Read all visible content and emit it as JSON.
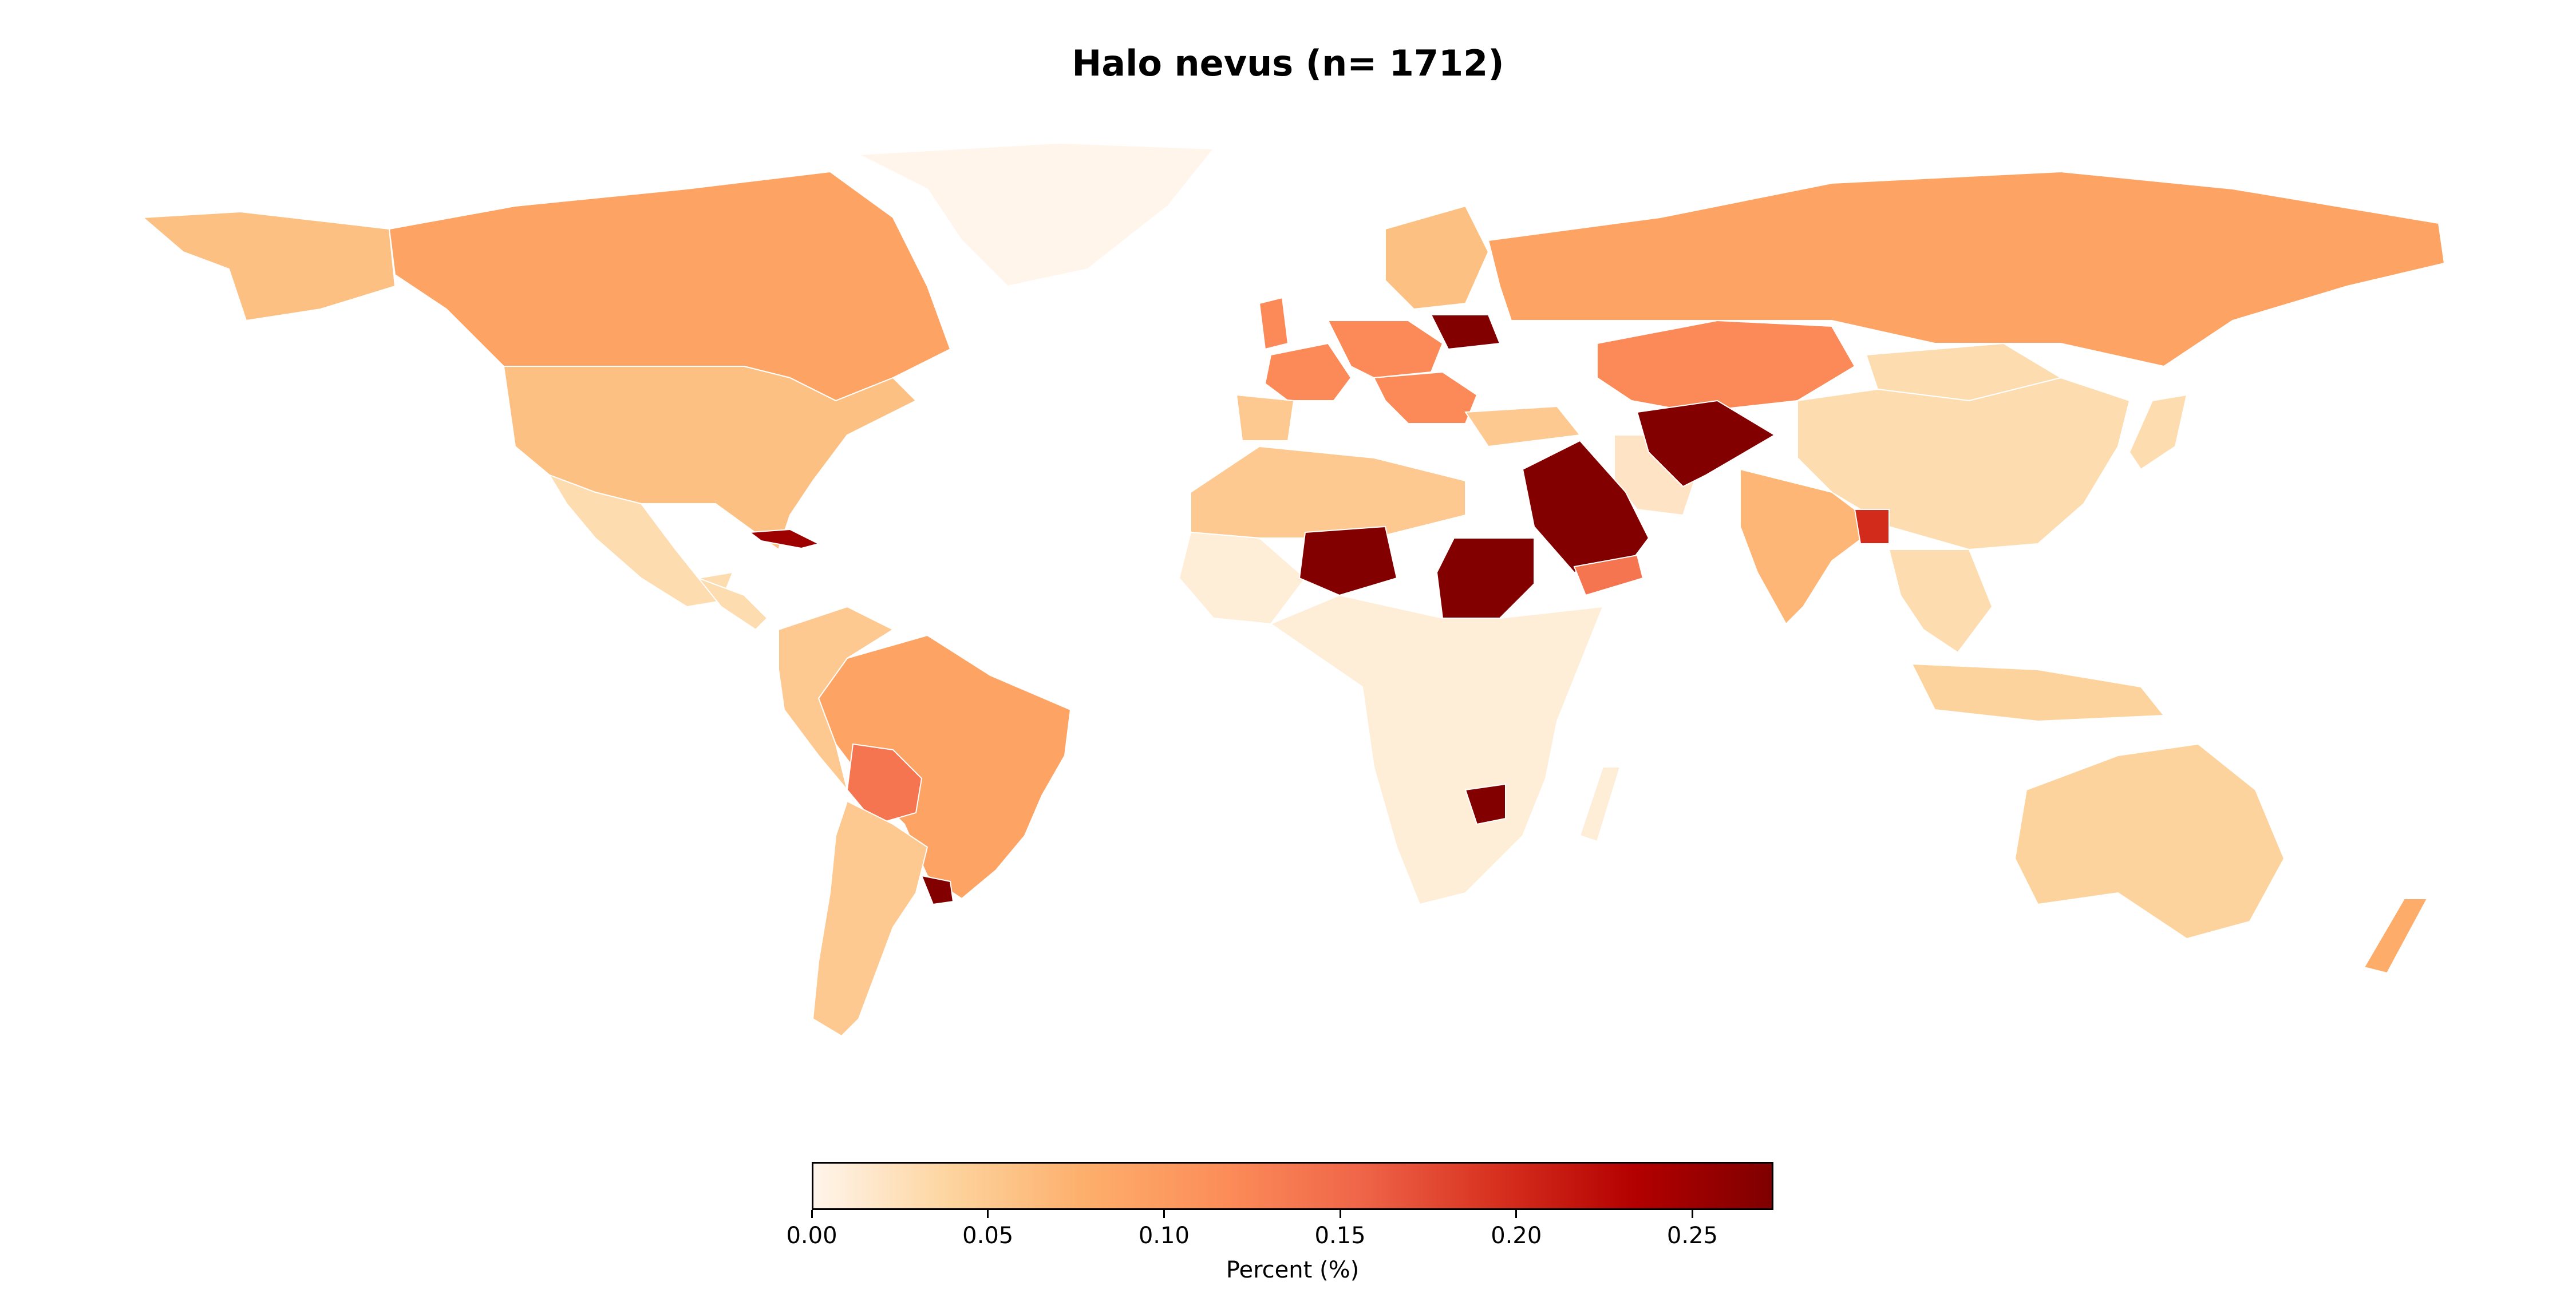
{
  "title": "Halo nevus (n= 1712)",
  "colorbar": {
    "label": "Percent (%)",
    "min": 0,
    "max": 0.273,
    "ticks": [
      "0.00",
      "0.05",
      "0.10",
      "0.15",
      "0.20",
      "0.25"
    ],
    "tick_values": [
      0,
      0.05,
      0.1,
      0.15,
      0.2,
      0.25
    ],
    "colors": [
      "#fff5eb",
      "#fdd49e",
      "#fdae6b",
      "#fc8d59",
      "#ef6548",
      "#d7301f",
      "#b30000",
      "#7f0000"
    ]
  },
  "countries": [
    {
      "name": "Canada",
      "value": 0.09
    },
    {
      "name": "USA",
      "value": 0.06
    },
    {
      "name": "Greenland",
      "value": 0.0
    },
    {
      "name": "Mexico",
      "value": 0.03
    },
    {
      "name": "Cuba",
      "value": 0.25
    },
    {
      "name": "Brazil",
      "value": 0.09
    },
    {
      "name": "Bolivia",
      "value": 0.14
    },
    {
      "name": "Uruguay",
      "value": 0.27
    },
    {
      "name": "Argentina",
      "value": 0.05
    },
    {
      "name": "Russia",
      "value": 0.09
    },
    {
      "name": "Kazakhstan",
      "value": 0.12
    },
    {
      "name": "China",
      "value": 0.03
    },
    {
      "name": "India",
      "value": 0.07
    },
    {
      "name": "Saudi Arabia",
      "value": 0.27
    },
    {
      "name": "Afghanistan",
      "value": 0.27
    },
    {
      "name": "Iran",
      "value": 0.02
    },
    {
      "name": "Niger",
      "value": 0.27
    },
    {
      "name": "Sudan",
      "value": 0.27
    },
    {
      "name": "Zimbabwe",
      "value": 0.27
    },
    {
      "name": "Australia",
      "value": 0.04
    },
    {
      "name": "France",
      "value": 0.12
    },
    {
      "name": "Algeria",
      "value": 0.05
    },
    {
      "name": "Yemen",
      "value": 0.14
    },
    {
      "name": "Bangladesh",
      "value": 0.2
    },
    {
      "name": "Africa (other)",
      "value": 0.01
    },
    {
      "name": "New Zealand",
      "value": 0.08
    }
  ]
}
